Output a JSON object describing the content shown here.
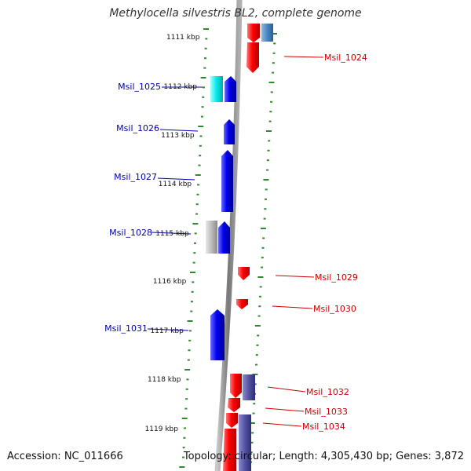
{
  "title": "Methylocella silvestris BL2, complete genome",
  "footer": {
    "accession": "Accession: NC_011666",
    "summary": "Topology: circular; Length: 4,305,430 bp; Genes: 3,872"
  },
  "colors": {
    "forward_cds": "#ff0000",
    "reverse_cds": "#0000ee",
    "forward_gene": "#5b5ba8",
    "reverse_gene_cyan": "#00e5e5",
    "reverse_gene_gray": "#b8b8b8",
    "backbone": "#888888",
    "tick": "#2e8b2e",
    "forward_label": "#cc0000",
    "reverse_label": "#0000aa"
  },
  "ticks": [
    {
      "label": "1111 kbp"
    },
    {
      "label": "1112 kbp"
    },
    {
      "label": "1113 kbp"
    },
    {
      "label": "1114 kbp"
    },
    {
      "label": "1115 kbp"
    },
    {
      "label": "1116 kbp"
    },
    {
      "label": "1117 kbp"
    },
    {
      "label": "1118 kbp"
    },
    {
      "label": "1119 kbp"
    }
  ],
  "forward_labels": [
    {
      "name": "Msil_1024"
    },
    {
      "name": "Msil_1029"
    },
    {
      "name": "Msil_1030"
    },
    {
      "name": "Msil_1032"
    },
    {
      "name": "Msil_1033"
    },
    {
      "name": "Msil_1034"
    }
  ],
  "reverse_labels": [
    {
      "name": "Msil_1025"
    },
    {
      "name": "Msil_1026"
    },
    {
      "name": "Msil_1027"
    },
    {
      "name": "Msil_1028"
    },
    {
      "name": "Msil_1031"
    }
  ]
}
